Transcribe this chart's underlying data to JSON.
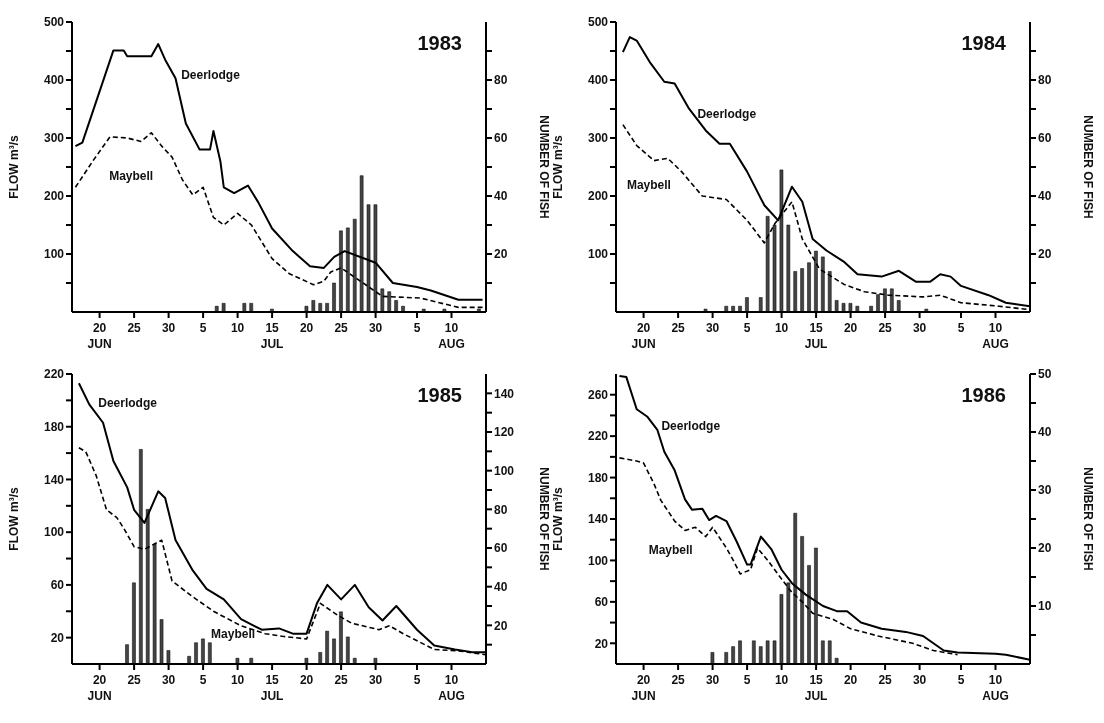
{
  "chart_data": [
    {
      "type": "line",
      "title": "1983",
      "ylabel": "FLOW m³/s",
      "y2label": "NUMBER OF FISH",
      "xlim": [
        "--06-16",
        "--08-15"
      ],
      "xticks": [
        {
          "value": "--06-20",
          "label": "20\nJUN"
        },
        {
          "value": "--06-25",
          "label": "25"
        },
        {
          "value": "--06-30",
          "label": "30"
        },
        {
          "value": "--07-05",
          "label": "5"
        },
        {
          "value": "--07-10",
          "label": "10"
        },
        {
          "value": "--07-15",
          "label": "15\nJUL"
        },
        {
          "value": "--07-20",
          "label": "20"
        },
        {
          "value": "--07-25",
          "label": "25"
        },
        {
          "value": "--07-30",
          "label": "30"
        },
        {
          "value": "--08-05",
          "label": "5"
        },
        {
          "value": "--08-10",
          "label": "10\nAUG"
        }
      ],
      "ylim": [
        0,
        500
      ],
      "yticks": [
        {
          "value": 50,
          "label": null
        },
        100,
        {
          "value": 150,
          "label": null
        },
        200,
        {
          "value": 250,
          "label": null
        },
        300,
        {
          "value": 350,
          "label": null
        },
        400,
        {
          "value": 450,
          "label": null
        },
        500
      ],
      "y2lim": [
        0,
        100
      ],
      "y2ticks": [
        {
          "value": 10,
          "label": null
        },
        20,
        {
          "value": 30,
          "label": null
        },
        40,
        {
          "value": 50,
          "label": null
        },
        60,
        {
          "value": 70,
          "label": null
        },
        80,
        {
          "value": 90,
          "label": null
        }
      ],
      "series": [
        {
          "type": "bar",
          "axis": "y2",
          "color": "#444444",
          "x": [
            "--07-07",
            "--07-08",
            "--07-11",
            "--07-12",
            "--07-15",
            "--07-20",
            "--07-21",
            "--07-22",
            "--07-23",
            "--07-24",
            "--07-25",
            "--07-26",
            "--07-27",
            "--07-28",
            "--07-29",
            "--07-30",
            "--07-31",
            "--08-01",
            "--08-02",
            "--08-03",
            "--08-06",
            "--08-09",
            "--08-14"
          ],
          "values": [
            2,
            3,
            3,
            3,
            1,
            2,
            4,
            3,
            3,
            10,
            28,
            29,
            32,
            47,
            37,
            37,
            8,
            7,
            4,
            2,
            1,
            1,
            1
          ]
        },
        {
          "name": "Deerlodge",
          "color": "#000000",
          "line_style": "solid",
          "x": [
            "--06-16T12:00",
            "--06-17T12:00",
            "--06-22",
            "--06-23T12:00",
            "--06-24",
            "--06-27T12:00",
            "--06-28T12:00",
            "--06-29T12:00",
            "--07-01",
            "--07-02T12:00",
            "--07-04T12:00",
            "--07-06",
            "--07-06T12:00",
            "--07-07T12:00",
            "--07-08",
            "--07-09T12:00",
            "--07-11T12:00",
            "--07-13",
            "--07-15",
            "--07-18",
            "--07-20T12:00",
            "--07-22T12:00",
            "--07-24",
            "--07-25T12:00",
            "--07-30",
            "--08-01T12:00",
            "--08-05",
            "--08-07",
            "--08-11",
            "--08-14T12:00"
          ],
          "values": [
            286,
            292,
            451,
            451,
            441,
            441,
            462,
            435,
            403,
            325,
            280,
            280,
            312,
            260,
            215,
            205,
            218,
            189,
            144,
            105,
            79,
            76,
            95,
            105,
            85,
            50,
            43,
            37,
            21,
            21
          ]
        },
        {
          "name": "Maybell",
          "color": "#000000",
          "line_style": "dashed",
          "x": [
            "--06-16T12:00",
            "--06-19",
            "--06-21T12:00",
            "--06-24",
            "--06-26",
            "--06-27T12:00",
            "--06-29",
            "--06-30T12:00",
            "--07-02",
            "--07-03T12:00",
            "--07-05",
            "--07-06T12:00",
            "--07-08",
            "--07-10",
            "--07-12",
            "--07-15",
            "--07-17T12:00",
            "--07-21",
            "--07-22T12:00",
            "--07-23T12:00",
            "--07-25",
            "--07-31",
            "--08-05T12:00",
            "--08-11",
            "--08-14T12:00"
          ],
          "values": [
            215,
            260,
            302,
            300,
            294,
            309,
            286,
            267,
            228,
            202,
            215,
            163,
            150,
            170,
            150,
            92,
            66,
            47,
            53,
            69,
            76,
            27,
            24,
            8,
            8
          ]
        }
      ]
    },
    {
      "type": "line",
      "title": "1984",
      "ylabel": "FLOW m³/s",
      "y2label": "NUMBER OF FISH",
      "xlim": [
        "--06-16",
        "--08-15"
      ],
      "xticks": [
        {
          "value": "--06-20",
          "label": "20\nJUN"
        },
        {
          "value": "--06-25",
          "label": "25"
        },
        {
          "value": "--06-30",
          "label": "30"
        },
        {
          "value": "--07-05",
          "label": "5"
        },
        {
          "value": "--07-10",
          "label": "10"
        },
        {
          "value": "--07-15",
          "label": "15\nJUL"
        },
        {
          "value": "--07-20",
          "label": "20"
        },
        {
          "value": "--07-25",
          "label": "25"
        },
        {
          "value": "--07-30",
          "label": "30"
        },
        {
          "value": "--08-05",
          "label": "5"
        },
        {
          "value": "--08-10",
          "label": "10\nAUG"
        }
      ],
      "ylim": [
        0,
        500
      ],
      "yticks": [
        {
          "value": 50,
          "label": null
        },
        100,
        {
          "value": 150,
          "label": null
        },
        200,
        {
          "value": 250,
          "label": null
        },
        300,
        {
          "value": 350,
          "label": null
        },
        400,
        {
          "value": 450,
          "label": null
        },
        500
      ],
      "y2lim": [
        0,
        100
      ],
      "y2ticks": [
        {
          "value": 10,
          "label": null
        },
        20,
        {
          "value": 30,
          "label": null
        },
        40,
        {
          "value": 50,
          "label": null
        },
        60,
        {
          "value": 70,
          "label": null
        },
        80,
        {
          "value": 90,
          "label": null
        }
      ],
      "series": [
        {
          "type": "bar",
          "axis": "y2",
          "color": "#444444",
          "x": [
            "--06-29",
            "--07-02",
            "--07-03",
            "--07-04",
            "--07-05",
            "--07-07",
            "--07-08",
            "--07-09",
            "--07-10",
            "--07-11",
            "--07-12",
            "--07-13",
            "--07-14",
            "--07-15",
            "--07-16",
            "--07-17",
            "--07-18",
            "--07-19",
            "--07-20",
            "--07-21",
            "--07-23",
            "--07-24",
            "--07-25",
            "--07-26",
            "--07-27",
            "--07-31"
          ],
          "values": [
            1,
            2,
            2,
            2,
            5,
            5,
            33,
            30,
            49,
            30,
            14,
            15,
            17,
            21,
            19,
            14,
            4,
            3,
            3,
            2,
            2,
            6,
            8,
            8,
            4,
            1
          ]
        },
        {
          "name": "Deerlodge",
          "color": "#000000",
          "line_style": "solid",
          "x": [
            "--06-17",
            "--06-18",
            "--06-19",
            "--06-21",
            "--06-23",
            "--06-24T12:00",
            "--06-26T12:00",
            "--06-29",
            "--07-01",
            "--07-02T12:00",
            "--07-05",
            "--07-07T12:00",
            "--07-09T12:00",
            "--07-11T12:00",
            "--07-13",
            "--07-14T12:00",
            "--07-16T12:00",
            "--07-19",
            "--07-21",
            "--07-24T12:00",
            "--07-27",
            "--07-29T12:00",
            "--07-31T12:00",
            "--08-02",
            "--08-03T12:00",
            "--08-05",
            "--08-09",
            "--08-11T12:00",
            "--08-15"
          ],
          "values": [
            448,
            474,
            468,
            429,
            397,
            394,
            352,
            313,
            290,
            290,
            242,
            184,
            158,
            216,
            190,
            126,
            106,
            87,
            65,
            61,
            71,
            52,
            52,
            65,
            61,
            45,
            29,
            16,
            10
          ]
        },
        {
          "name": "Maybell",
          "color": "#000000",
          "line_style": "dashed",
          "x": [
            "--06-17",
            "--06-19",
            "--06-21T12:00",
            "--06-23T12:00",
            "--06-25T12:00",
            "--06-28T12:00",
            "--07-02",
            "--07-05",
            "--07-07T12:00",
            "--07-09",
            "--07-11T12:00",
            "--07-13",
            "--07-15T12:00",
            "--07-19",
            "--07-22",
            "--07-25T12:00",
            "--07-30T12:00",
            "--08-02",
            "--08-05",
            "--08-10T12:00",
            "--08-15"
          ],
          "values": [
            323,
            287,
            261,
            265,
            242,
            200,
            194,
            158,
            119,
            152,
            190,
            126,
            74,
            48,
            35,
            29,
            26,
            29,
            16,
            10,
            4
          ]
        }
      ]
    },
    {
      "type": "line",
      "title": "1985",
      "ylabel": "FLOW m³/s",
      "y2label": "NUMBER OF FISH",
      "xlim": [
        "--06-16",
        "--08-15"
      ],
      "xticks": [
        {
          "value": "--06-20",
          "label": "20\nJUN"
        },
        {
          "value": "--06-25",
          "label": "25"
        },
        {
          "value": "--06-30",
          "label": "30"
        },
        {
          "value": "--07-05",
          "label": "5"
        },
        {
          "value": "--07-10",
          "label": "10"
        },
        {
          "value": "--07-15",
          "label": "15\nJUL"
        },
        {
          "value": "--07-20",
          "label": "20"
        },
        {
          "value": "--07-25",
          "label": "25"
        },
        {
          "value": "--07-30",
          "label": "30"
        },
        {
          "value": "--08-05",
          "label": "5"
        },
        {
          "value": "--08-10",
          "label": "10\nAUG"
        }
      ],
      "ylim": [
        0,
        220
      ],
      "yticks": [
        20,
        {
          "value": 40,
          "label": null
        },
        60,
        {
          "value": 80,
          "label": null
        },
        100,
        {
          "value": 120,
          "label": null
        },
        140,
        {
          "value": 160,
          "label": null
        },
        180,
        {
          "value": 200,
          "label": null
        },
        220
      ],
      "y2lim": [
        0,
        150
      ],
      "y2ticks": [
        {
          "value": 10,
          "label": null
        },
        20,
        {
          "value": 30,
          "label": null
        },
        40,
        {
          "value": 50,
          "label": null
        },
        60,
        {
          "value": 70,
          "label": null
        },
        80,
        {
          "value": 90,
          "label": null
        },
        100,
        {
          "value": 110,
          "label": null
        },
        120,
        {
          "value": 130,
          "label": null
        },
        140
      ],
      "series": [
        {
          "type": "bar",
          "axis": "y2",
          "color": "#444444",
          "x": [
            "--06-24",
            "--06-25",
            "--06-26",
            "--06-27",
            "--06-28",
            "--06-29",
            "--06-30",
            "--07-03",
            "--07-04",
            "--07-05",
            "--07-06",
            "--07-10",
            "--07-12",
            "--07-20",
            "--07-22",
            "--07-23",
            "--07-24",
            "--07-25",
            "--07-26",
            "--07-27",
            "--07-30"
          ],
          "values": [
            10,
            42,
            111,
            80,
            62,
            23,
            7,
            4,
            11,
            13,
            11,
            3,
            3,
            3,
            6,
            17,
            13,
            27,
            14,
            3,
            3
          ]
        },
        {
          "name": "Deerlodge",
          "color": "#000000",
          "line_style": "solid",
          "x": [
            "--06-17",
            "--06-18T12:00",
            "--06-20T12:00",
            "--06-22",
            "--06-24",
            "--06-25",
            "--06-26T12:00",
            "--06-28T12:00",
            "--06-29T12:00",
            "--07-01",
            "--07-03T12:00",
            "--07-05T12:00",
            "--07-08",
            "--07-10T12:00",
            "--07-13T12:00",
            "--07-16",
            "--07-18",
            "--07-20",
            "--07-21T12:00",
            "--07-23",
            "--07-25",
            "--07-27",
            "--07-29",
            "--07-31",
            "--08-02",
            "--08-05",
            "--08-07T12:00",
            "--08-10T12:00",
            "--08-13",
            "--08-15"
          ],
          "values": [
            213,
            197,
            183,
            154,
            134,
            117,
            107,
            131,
            126,
            94,
            71,
            57,
            49,
            34,
            26,
            27,
            23,
            23,
            46,
            60,
            49,
            60,
            43,
            33,
            44,
            26,
            14,
            11,
            9,
            9
          ]
        },
        {
          "name": "Maybell",
          "color": "#000000",
          "line_style": "dashed",
          "x": [
            "--06-17",
            "--06-18",
            "--06-19T12:00",
            "--06-21",
            "--06-22T12:00",
            "--06-23T12:00",
            "--06-25",
            "--06-26T12:00",
            "--06-29",
            "--06-30T12:00",
            "--07-03T12:00",
            "--07-06T12:00",
            "--07-10T12:00",
            "--07-14",
            "--07-16T12:00",
            "--07-20",
            "--07-22",
            "--07-24T12:00",
            "--07-26T12:00",
            "--07-30T12:00",
            "--08-01",
            "--08-03",
            "--08-07T12:00",
            "--08-11",
            "--08-15"
          ],
          "values": [
            164,
            161,
            143,
            117,
            111,
            103,
            89,
            87,
            94,
            63,
            51,
            40,
            29,
            23,
            21,
            19,
            46,
            37,
            31,
            26,
            29,
            23,
            11,
            10,
            7
          ]
        }
      ]
    },
    {
      "type": "line",
      "title": "1986",
      "ylabel": "FLOW m³/s",
      "y2label": "NUMBER OF FISH",
      "xlim": [
        "--06-16",
        "--08-15"
      ],
      "xticks": [
        {
          "value": "--06-20",
          "label": "20\nJUN"
        },
        {
          "value": "--06-25",
          "label": "25"
        },
        {
          "value": "--06-30",
          "label": "30"
        },
        {
          "value": "--07-05",
          "label": "5"
        },
        {
          "value": "--07-10",
          "label": "10"
        },
        {
          "value": "--07-15",
          "label": "15\nJUL"
        },
        {
          "value": "--07-20",
          "label": "20"
        },
        {
          "value": "--07-25",
          "label": "25"
        },
        {
          "value": "--07-30",
          "label": "30"
        },
        {
          "value": "--08-05",
          "label": "5"
        },
        {
          "value": "--08-10",
          "label": "10\nAUG"
        }
      ],
      "ylim": [
        0,
        280
      ],
      "yticks": [
        20,
        {
          "value": 40,
          "label": null
        },
        60,
        {
          "value": 80,
          "label": null
        },
        100,
        {
          "value": 120,
          "label": null
        },
        140,
        {
          "value": 160,
          "label": null
        },
        180,
        {
          "value": 200,
          "label": null
        },
        220,
        {
          "value": 240,
          "label": null
        },
        260
      ],
      "y2lim": [
        0,
        50
      ],
      "y2ticks": [
        {
          "value": 5,
          "label": null
        },
        10,
        {
          "value": 15,
          "label": null
        },
        20,
        {
          "value": 25,
          "label": null
        },
        30,
        {
          "value": 35,
          "label": null
        },
        40,
        {
          "value": 45,
          "label": null
        },
        50
      ],
      "series": [
        {
          "type": "bar",
          "axis": "y2",
          "color": "#444444",
          "x": [
            "--06-30",
            "--07-02",
            "--07-03",
            "--07-04",
            "--07-06",
            "--07-07",
            "--07-08",
            "--07-09",
            "--07-10",
            "--07-11",
            "--07-12",
            "--07-13",
            "--07-14",
            "--07-15",
            "--07-16",
            "--07-17",
            "--07-18"
          ],
          "values": [
            2,
            2,
            3,
            4,
            4,
            3,
            4,
            4,
            12,
            14,
            26,
            22,
            17,
            20,
            4,
            4,
            1
          ]
        },
        {
          "name": "Deerlodge",
          "color": "#000000",
          "line_style": "solid",
          "x": [
            "--06-16T12:00",
            "--06-17T12:00",
            "--06-19",
            "--06-20T12:00",
            "--06-22",
            "--06-23",
            "--06-24T12:00",
            "--06-26",
            "--06-27",
            "--06-28T12:00",
            "--06-29T12:00",
            "--06-30T12:00",
            "--07-02",
            "--07-03T12:00",
            "--07-05",
            "--07-05T12:00",
            "--07-07",
            "--07-08T12:00",
            "--07-10",
            "--07-11T12:00",
            "--07-13T12:00",
            "--07-16",
            "--07-18",
            "--07-19T12:00",
            "--07-21T12:00",
            "--07-24T12:00",
            "--07-28",
            "--07-30T12:00",
            "--08-02T12:00",
            "--08-04T12:00",
            "--08-10",
            "--08-11T12:00",
            "--08-15"
          ],
          "values": [
            278,
            277,
            246,
            239,
            226,
            205,
            187,
            159,
            149,
            150,
            139,
            143,
            138,
            118,
            96,
            96,
            123,
            111,
            91,
            78,
            67,
            56,
            51,
            51,
            40,
            34,
            31,
            27,
            13,
            11,
            10,
            9,
            4
          ]
        },
        {
          "name": "Maybell",
          "color": "#000000",
          "line_style": "dashed",
          "x": [
            "--06-16T12:00",
            "--06-19",
            "--06-20",
            "--06-21T12:00",
            "--06-22T12:00",
            "--06-24T12:00",
            "--06-26",
            "--06-27T12:00",
            "--06-29",
            "--06-30",
            "--07-02",
            "--07-03",
            "--07-04",
            "--07-05T12:00",
            "--07-06T12:00",
            "--07-08",
            "--07-10",
            "--07-11T12:00",
            "--07-13",
            "--07-14T12:00",
            "--07-17T12:00",
            "--07-20",
            "--07-24",
            "--07-29",
            "--08-01",
            "--08-04T12:00"
          ],
          "values": [
            199,
            196,
            194,
            174,
            158,
            138,
            129,
            132,
            123,
            132,
            112,
            100,
            87,
            91,
            112,
            100,
            82,
            69,
            60,
            49,
            43,
            34,
            27,
            20,
            13,
            9
          ]
        }
      ]
    }
  ]
}
